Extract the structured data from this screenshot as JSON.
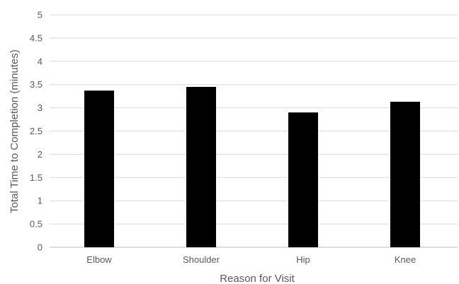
{
  "chart_data": {
    "type": "bar",
    "title": "",
    "xlabel": "Reason for Visit",
    "ylabel": "Total Time to Completion (minutes)",
    "categories": [
      "Elbow",
      "Shoulder",
      "Hip",
      "Knee"
    ],
    "series": [
      {
        "values": [
          3.37,
          3.45,
          2.9,
          3.13
        ]
      }
    ],
    "ylim": [
      0,
      5
    ],
    "ytick_labels": [
      "0",
      "0.5",
      "1",
      "1.5",
      "2",
      "2.5",
      "3",
      "3.5",
      "4",
      "4.5",
      "5"
    ],
    "grid": true,
    "legend": "none",
    "bar_color": "#000000",
    "grid_color": "#d9d9d9"
  }
}
